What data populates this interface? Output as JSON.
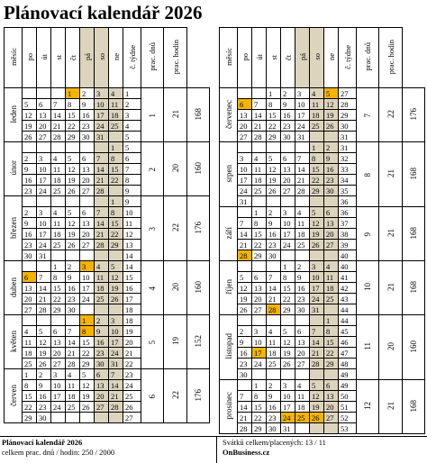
{
  "title": "Plánovací kalendář 2026",
  "headers": [
    "měsíc",
    "po",
    "út",
    "st",
    "čt",
    "pá",
    "so",
    "ne",
    "č. týdne",
    "prac. dnů",
    "prac. hodin"
  ],
  "left_months": [
    {
      "name": "leden",
      "index": "1",
      "days": "21",
      "hours": "168",
      "weeks": [
        [
          "",
          "",
          "",
          "1",
          "2",
          "3",
          "4",
          "1"
        ],
        [
          "5",
          "6",
          "7",
          "8",
          "9",
          "10",
          "11",
          "2"
        ],
        [
          "12",
          "13",
          "14",
          "15",
          "16",
          "17",
          "18",
          "3"
        ],
        [
          "19",
          "20",
          "21",
          "22",
          "23",
          "24",
          "25",
          "4"
        ],
        [
          "26",
          "27",
          "28",
          "29",
          "30",
          "31",
          "",
          "5"
        ]
      ]
    },
    {
      "name": "únor",
      "index": "2",
      "days": "20",
      "hours": "160",
      "weeks": [
        [
          "",
          "",
          "",
          "",
          "",
          "",
          "1",
          "5"
        ],
        [
          "2",
          "3",
          "4",
          "5",
          "6",
          "7",
          "8",
          "6"
        ],
        [
          "9",
          "10",
          "11",
          "12",
          "13",
          "14",
          "15",
          "7"
        ],
        [
          "16",
          "17",
          "18",
          "19",
          "20",
          "21",
          "22",
          "8"
        ],
        [
          "23",
          "24",
          "25",
          "26",
          "27",
          "28",
          "",
          "9"
        ]
      ]
    },
    {
      "name": "březen",
      "index": "3",
      "days": "22",
      "hours": "176",
      "weeks": [
        [
          "",
          "",
          "",
          "",
          "",
          "",
          "1",
          "9"
        ],
        [
          "2",
          "3",
          "4",
          "5",
          "6",
          "7",
          "8",
          "10"
        ],
        [
          "9",
          "10",
          "11",
          "12",
          "13",
          "14",
          "15",
          "11"
        ],
        [
          "16",
          "17",
          "18",
          "19",
          "20",
          "21",
          "22",
          "12"
        ],
        [
          "23",
          "24",
          "25",
          "26",
          "27",
          "28",
          "29",
          "13"
        ],
        [
          "30",
          "31",
          "",
          "",
          "",
          "",
          "",
          "14"
        ]
      ]
    },
    {
      "name": "duben",
      "index": "4",
      "days": "20",
      "hours": "160",
      "weeks": [
        [
          "",
          "",
          "1",
          "2",
          "3",
          "4",
          "5",
          "14"
        ],
        [
          "6",
          "7",
          "8",
          "9",
          "10",
          "11",
          "12",
          "15"
        ],
        [
          "13",
          "14",
          "15",
          "16",
          "17",
          "18",
          "19",
          "16"
        ],
        [
          "20",
          "21",
          "22",
          "23",
          "24",
          "25",
          "26",
          "17"
        ],
        [
          "27",
          "28",
          "29",
          "30",
          "",
          "",
          "",
          "18"
        ]
      ]
    },
    {
      "name": "květen",
      "index": "5",
      "days": "19",
      "hours": "152",
      "weeks": [
        [
          "",
          "",
          "",
          "",
          "1",
          "2",
          "3",
          "18"
        ],
        [
          "4",
          "5",
          "6",
          "7",
          "8",
          "9",
          "10",
          "19"
        ],
        [
          "11",
          "12",
          "13",
          "14",
          "15",
          "16",
          "17",
          "20"
        ],
        [
          "18",
          "19",
          "20",
          "21",
          "22",
          "23",
          "24",
          "21"
        ],
        [
          "25",
          "26",
          "27",
          "28",
          "29",
          "30",
          "31",
          "22"
        ]
      ]
    },
    {
      "name": "červen",
      "index": "6",
      "days": "22",
      "hours": "176",
      "weeks": [
        [
          "1",
          "2",
          "3",
          "4",
          "5",
          "6",
          "7",
          "23"
        ],
        [
          "8",
          "9",
          "10",
          "11",
          "12",
          "13",
          "14",
          "24"
        ],
        [
          "15",
          "16",
          "17",
          "18",
          "19",
          "20",
          "21",
          "25"
        ],
        [
          "22",
          "23",
          "24",
          "25",
          "26",
          "27",
          "28",
          "26"
        ],
        [
          "29",
          "30",
          "",
          "",
          "",
          "",
          "",
          "27"
        ]
      ]
    }
  ],
  "right_months": [
    {
      "name": "červenec",
      "index": "7",
      "days": "22",
      "hours": "176",
      "weeks": [
        [
          "",
          "",
          "1",
          "2",
          "3",
          "4",
          "5",
          "27"
        ],
        [
          "6",
          "7",
          "8",
          "9",
          "10",
          "11",
          "12",
          "28"
        ],
        [
          "13",
          "14",
          "15",
          "16",
          "17",
          "18",
          "19",
          "29"
        ],
        [
          "20",
          "21",
          "22",
          "23",
          "24",
          "25",
          "26",
          "30"
        ],
        [
          "27",
          "28",
          "29",
          "30",
          "31",
          "",
          "",
          "31"
        ]
      ]
    },
    {
      "name": "srpen",
      "index": "8",
      "days": "21",
      "hours": "168",
      "weeks": [
        [
          "",
          "",
          "",
          "",
          "",
          "1",
          "2",
          "31"
        ],
        [
          "3",
          "4",
          "5",
          "6",
          "7",
          "8",
          "9",
          "32"
        ],
        [
          "10",
          "11",
          "12",
          "13",
          "14",
          "15",
          "16",
          "33"
        ],
        [
          "17",
          "18",
          "19",
          "20",
          "21",
          "22",
          "23",
          "34"
        ],
        [
          "24",
          "25",
          "26",
          "27",
          "28",
          "29",
          "30",
          "35"
        ],
        [
          "31",
          "",
          "",
          "",
          "",
          "",
          "",
          "36"
        ]
      ]
    },
    {
      "name": "září",
      "index": "9",
      "days": "21",
      "hours": "168",
      "weeks": [
        [
          "",
          "1",
          "2",
          "3",
          "4",
          "5",
          "6",
          "36"
        ],
        [
          "7",
          "8",
          "9",
          "10",
          "11",
          "12",
          "13",
          "37"
        ],
        [
          "14",
          "15",
          "16",
          "17",
          "18",
          "19",
          "20",
          "38"
        ],
        [
          "21",
          "22",
          "23",
          "24",
          "25",
          "26",
          "27",
          "39"
        ],
        [
          "28",
          "29",
          "30",
          "",
          "",
          "",
          "",
          "40"
        ]
      ]
    },
    {
      "name": "říjen",
      "index": "10",
      "days": "21",
      "hours": "168",
      "weeks": [
        [
          "",
          "",
          "",
          "1",
          "2",
          "3",
          "4",
          "40"
        ],
        [
          "5",
          "6",
          "7",
          "8",
          "9",
          "10",
          "11",
          "41"
        ],
        [
          "12",
          "13",
          "14",
          "15",
          "16",
          "17",
          "18",
          "42"
        ],
        [
          "19",
          "20",
          "21",
          "22",
          "23",
          "24",
          "25",
          "43"
        ],
        [
          "26",
          "27",
          "28",
          "29",
          "30",
          "31",
          "",
          "44"
        ]
      ]
    },
    {
      "name": "listopad",
      "index": "11",
      "days": "20",
      "hours": "160",
      "weeks": [
        [
          "",
          "",
          "",
          "",
          "",
          "",
          "1",
          "44"
        ],
        [
          "2",
          "3",
          "4",
          "5",
          "6",
          "7",
          "8",
          "45"
        ],
        [
          "9",
          "10",
          "11",
          "12",
          "13",
          "14",
          "15",
          "46"
        ],
        [
          "16",
          "17",
          "18",
          "19",
          "20",
          "21",
          "22",
          "47"
        ],
        [
          "23",
          "24",
          "25",
          "26",
          "27",
          "28",
          "29",
          "48"
        ],
        [
          "30",
          "",
          "",
          "",
          "",
          "",
          "",
          "49"
        ]
      ]
    },
    {
      "name": "prosinec",
      "index": "12",
      "days": "21",
      "hours": "168",
      "weeks": [
        [
          "",
          "1",
          "2",
          "3",
          "4",
          "5",
          "6",
          "49"
        ],
        [
          "7",
          "8",
          "9",
          "10",
          "11",
          "12",
          "13",
          "50"
        ],
        [
          "14",
          "15",
          "16",
          "17",
          "18",
          "19",
          "20",
          "51"
        ],
        [
          "21",
          "22",
          "23",
          "24",
          "25",
          "26",
          "27",
          "52"
        ],
        [
          "28",
          "29",
          "30",
          "31",
          "",
          "",
          "",
          "53"
        ]
      ]
    }
  ],
  "holidays": {
    "left": [
      "1-1",
      "4-3",
      "4-6",
      "5-1",
      "5-8"
    ],
    "right": [
      "7-6",
      "7-5",
      "9-28",
      "10-28",
      "11-17",
      "12-24",
      "12-25",
      "12-26"
    ]
  },
  "footer": {
    "left_title": "Plánovací kalendář 2026",
    "left_stats": "celkem prac. dnů / hodin: 250 / 2000",
    "right_stats": "Svátků celkem/placených: 13 / 11",
    "right_site": "OnBusiness.cz"
  },
  "colors": {
    "weekend": "#ddd4be",
    "holiday": "#f4b400"
  }
}
